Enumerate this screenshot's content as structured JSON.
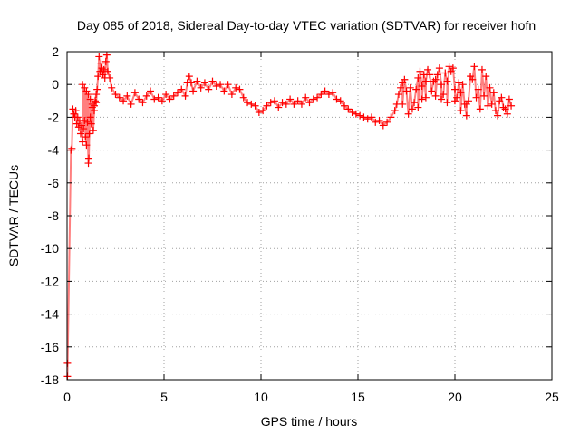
{
  "chart_data": {
    "type": "scatter",
    "title": "Day 085 of 2018, Sidereal Day-to-day VTEC variation (SDTVAR) for receiver hofn",
    "xlabel": "GPS time / hours",
    "ylabel": "SDTVAR / TECUs",
    "xlim": [
      0,
      25
    ],
    "ylim": [
      -18,
      2
    ],
    "x_ticks": [
      0,
      5,
      10,
      15,
      20,
      25
    ],
    "y_ticks": [
      -18,
      -16,
      -14,
      -12,
      -10,
      -8,
      -6,
      -4,
      -2,
      0,
      2
    ],
    "grid": true,
    "marker": "+",
    "color": "#ff0000",
    "series": [
      {
        "name": "SDTVAR",
        "points": [
          [
            0.02,
            -17.0
          ],
          [
            0.02,
            -17.8
          ],
          [
            0.2,
            -4.0
          ],
          [
            0.25,
            -3.9
          ],
          [
            0.3,
            -1.5
          ],
          [
            0.35,
            -1.8
          ],
          [
            0.4,
            -2.0
          ],
          [
            0.45,
            -1.6
          ],
          [
            0.5,
            -2.4
          ],
          [
            0.55,
            -2.0
          ],
          [
            0.6,
            -2.6
          ],
          [
            0.65,
            -2.2
          ],
          [
            0.7,
            -3.0
          ],
          [
            0.75,
            -2.5
          ],
          [
            0.8,
            -3.5
          ],
          [
            0.85,
            -2.7
          ],
          [
            0.9,
            -2.2
          ],
          [
            0.95,
            -3.2
          ],
          [
            1.0,
            -3.7
          ],
          [
            1.05,
            -2.3
          ],
          [
            1.1,
            -4.8
          ],
          [
            1.12,
            -4.5
          ],
          [
            1.15,
            -3.0
          ],
          [
            1.2,
            -2.0
          ],
          [
            1.25,
            -2.4
          ],
          [
            1.3,
            -1.4
          ],
          [
            1.35,
            -2.8
          ],
          [
            1.4,
            -1.6
          ],
          [
            1.45,
            -1.0
          ],
          [
            1.5,
            -0.6
          ],
          [
            1.55,
            -0.3
          ],
          [
            1.6,
            0.5
          ],
          [
            1.65,
            1.7
          ],
          [
            1.7,
            0.8
          ],
          [
            1.75,
            1.3
          ],
          [
            1.8,
            1.0
          ],
          [
            1.85,
            0.6
          ],
          [
            1.9,
            0.9
          ],
          [
            1.95,
            0.4
          ],
          [
            2.0,
            1.4
          ],
          [
            2.05,
            1.8
          ],
          [
            2.1,
            0.8
          ],
          [
            2.2,
            0.4
          ],
          [
            2.3,
            -0.2
          ],
          [
            0.8,
            0.0
          ],
          [
            0.9,
            -0.2
          ],
          [
            1.0,
            -0.4
          ],
          [
            1.1,
            -0.6
          ],
          [
            1.2,
            -0.9
          ],
          [
            1.3,
            -1.2
          ],
          [
            1.4,
            -1.3
          ],
          [
            1.5,
            -1.1
          ],
          [
            2.5,
            -0.6
          ],
          [
            2.7,
            -0.8
          ],
          [
            2.9,
            -1.0
          ],
          [
            3.1,
            -0.7
          ],
          [
            3.3,
            -1.2
          ],
          [
            3.5,
            -0.5
          ],
          [
            3.7,
            -0.9
          ],
          [
            3.9,
            -1.1
          ],
          [
            4.1,
            -0.7
          ],
          [
            4.3,
            -0.4
          ],
          [
            4.5,
            -0.9
          ],
          [
            4.7,
            -0.8
          ],
          [
            4.9,
            -1.0
          ],
          [
            5.1,
            -0.6
          ],
          [
            5.3,
            -0.9
          ],
          [
            5.5,
            -0.7
          ],
          [
            5.7,
            -0.5
          ],
          [
            5.9,
            -0.3
          ],
          [
            6.1,
            -0.7
          ],
          [
            6.2,
            0.1
          ],
          [
            6.3,
            0.5
          ],
          [
            6.4,
            0.1
          ],
          [
            6.5,
            -0.4
          ],
          [
            6.7,
            0.2
          ],
          [
            6.9,
            -0.2
          ],
          [
            7.1,
            0.1
          ],
          [
            7.3,
            -0.3
          ],
          [
            7.5,
            0.2
          ],
          [
            7.7,
            -0.1
          ],
          [
            7.9,
            0.0
          ],
          [
            8.1,
            -0.4
          ],
          [
            8.3,
            0.0
          ],
          [
            8.5,
            -0.6
          ],
          [
            8.7,
            -0.2
          ],
          [
            8.9,
            -0.3
          ],
          [
            9.1,
            -0.8
          ],
          [
            9.3,
            -1.1
          ],
          [
            9.5,
            -1.2
          ],
          [
            9.7,
            -1.3
          ],
          [
            9.9,
            -1.7
          ],
          [
            10.1,
            -1.6
          ],
          [
            10.3,
            -1.3
          ],
          [
            10.5,
            -1.1
          ],
          [
            10.7,
            -1.0
          ],
          [
            10.9,
            -1.4
          ],
          [
            11.1,
            -1.1
          ],
          [
            11.3,
            -1.2
          ],
          [
            11.5,
            -0.9
          ],
          [
            11.7,
            -1.2
          ],
          [
            11.9,
            -1.0
          ],
          [
            12.1,
            -1.2
          ],
          [
            12.3,
            -0.8
          ],
          [
            12.5,
            -1.1
          ],
          [
            12.7,
            -0.9
          ],
          [
            12.9,
            -0.8
          ],
          [
            13.1,
            -0.6
          ],
          [
            13.3,
            -0.4
          ],
          [
            13.5,
            -0.6
          ],
          [
            13.7,
            -0.5
          ],
          [
            13.9,
            -0.9
          ],
          [
            14.1,
            -1.0
          ],
          [
            14.3,
            -1.3
          ],
          [
            14.5,
            -1.5
          ],
          [
            14.7,
            -1.7
          ],
          [
            14.9,
            -1.8
          ],
          [
            15.1,
            -1.9
          ],
          [
            15.3,
            -2.0
          ],
          [
            15.5,
            -2.1
          ],
          [
            15.7,
            -2.0
          ],
          [
            15.9,
            -2.3
          ],
          [
            16.1,
            -2.2
          ],
          [
            16.3,
            -2.5
          ],
          [
            16.5,
            -2.3
          ],
          [
            16.7,
            -2.0
          ],
          [
            16.9,
            -1.6
          ],
          [
            17.0,
            -1.2
          ],
          [
            17.1,
            -0.6
          ],
          [
            17.2,
            -0.2
          ],
          [
            17.3,
            0.1
          ],
          [
            17.5,
            -0.4
          ],
          [
            17.6,
            -1.8
          ],
          [
            17.8,
            -1.5
          ],
          [
            18.0,
            -0.3
          ],
          [
            18.1,
            0.4
          ],
          [
            18.3,
            -0.1
          ],
          [
            18.5,
            -0.8
          ],
          [
            18.7,
            0.6
          ],
          [
            18.9,
            0.2
          ],
          [
            19.1,
            0.6
          ],
          [
            19.3,
            0.0
          ],
          [
            19.5,
            0.7
          ],
          [
            19.7,
            1.1
          ],
          [
            19.8,
            0.8
          ],
          [
            20.0,
            -0.3
          ],
          [
            20.1,
            -0.8
          ],
          [
            20.3,
            -0.5
          ],
          [
            20.5,
            -1.2
          ],
          [
            20.6,
            -1.9
          ],
          [
            20.7,
            -1.0
          ],
          [
            20.9,
            0.3
          ],
          [
            21.0,
            1.1
          ],
          [
            21.1,
            -0.8
          ],
          [
            21.3,
            -1.5
          ],
          [
            21.5,
            -0.7
          ],
          [
            21.6,
            0.5
          ],
          [
            21.8,
            -0.2
          ],
          [
            21.9,
            -1.2
          ],
          [
            22.1,
            -1.6
          ],
          [
            22.3,
            -1.0
          ],
          [
            22.5,
            -1.4
          ],
          [
            22.7,
            -1.8
          ],
          [
            22.8,
            -0.9
          ],
          [
            22.9,
            -1.3
          ],
          [
            17.4,
            0.3
          ],
          [
            17.7,
            -0.2
          ],
          [
            18.2,
            0.8
          ],
          [
            18.4,
            0.6
          ],
          [
            18.6,
            0.9
          ],
          [
            18.8,
            -0.4
          ],
          [
            19.0,
            0.3
          ],
          [
            19.2,
            1.0
          ],
          [
            19.4,
            -0.6
          ],
          [
            19.6,
            0.2
          ],
          [
            19.9,
            1.0
          ],
          [
            20.2,
            0.1
          ],
          [
            20.4,
            0.0
          ],
          [
            20.8,
            0.5
          ],
          [
            21.2,
            -0.3
          ],
          [
            21.4,
            0.9
          ],
          [
            21.7,
            -1.3
          ],
          [
            22.0,
            -0.5
          ],
          [
            22.2,
            -1.9
          ],
          [
            22.4,
            -0.8
          ],
          [
            22.6,
            -1.5
          ],
          [
            17.3,
            -1.2
          ],
          [
            17.9,
            -1.1
          ],
          [
            18.1,
            -1.4
          ],
          [
            18.3,
            -0.9
          ],
          [
            18.5,
            0.2
          ],
          [
            19.0,
            -0.7
          ],
          [
            19.3,
            -0.9
          ],
          [
            19.6,
            -1.1
          ],
          [
            20.0,
            -1.0
          ],
          [
            20.3,
            -1.6
          ],
          [
            20.6,
            -1.2
          ]
        ]
      }
    ]
  }
}
